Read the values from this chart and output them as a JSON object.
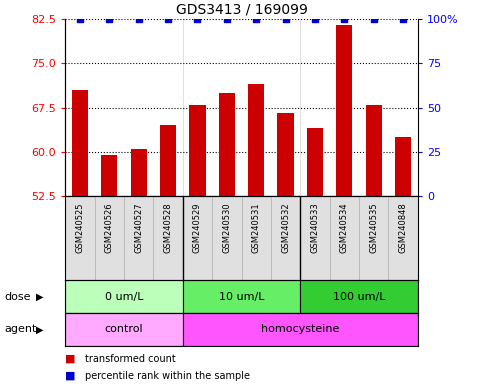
{
  "title": "GDS3413 / 169099",
  "samples": [
    "GSM240525",
    "GSM240526",
    "GSM240527",
    "GSM240528",
    "GSM240529",
    "GSM240530",
    "GSM240531",
    "GSM240532",
    "GSM240533",
    "GSM240534",
    "GSM240535",
    "GSM240848"
  ],
  "bar_values": [
    70.5,
    59.5,
    60.5,
    64.5,
    68.0,
    70.0,
    71.5,
    66.5,
    64.0,
    81.5,
    68.0,
    62.5
  ],
  "percentile_values": [
    100,
    100,
    100,
    100,
    100,
    100,
    100,
    100,
    100,
    100,
    100,
    100
  ],
  "bar_color": "#cc0000",
  "dot_color": "#0000cc",
  "ylim_left": [
    52.5,
    82.5
  ],
  "ylim_right": [
    0,
    100
  ],
  "yticks_left": [
    52.5,
    60.0,
    67.5,
    75.0,
    82.5
  ],
  "yticks_right": [
    0,
    25,
    50,
    75,
    100
  ],
  "dose_groups": [
    {
      "label": "0 um/L",
      "start": 0,
      "end": 4,
      "color": "#bbffbb"
    },
    {
      "label": "10 um/L",
      "start": 4,
      "end": 8,
      "color": "#66ee66"
    },
    {
      "label": "100 um/L",
      "start": 8,
      "end": 12,
      "color": "#33cc33"
    }
  ],
  "agent_groups": [
    {
      "label": "control",
      "start": 0,
      "end": 4,
      "color": "#ffaaff"
    },
    {
      "label": "homocysteine",
      "start": 4,
      "end": 12,
      "color": "#ff55ff"
    }
  ],
  "dose_label": "dose",
  "agent_label": "agent",
  "legend_bar": "transformed count",
  "legend_dot": "percentile rank within the sample",
  "background_plot": "#ffffff",
  "background_label": "#e0e0e0",
  "title_color": "#000000",
  "group_boundaries": [
    4,
    8
  ]
}
